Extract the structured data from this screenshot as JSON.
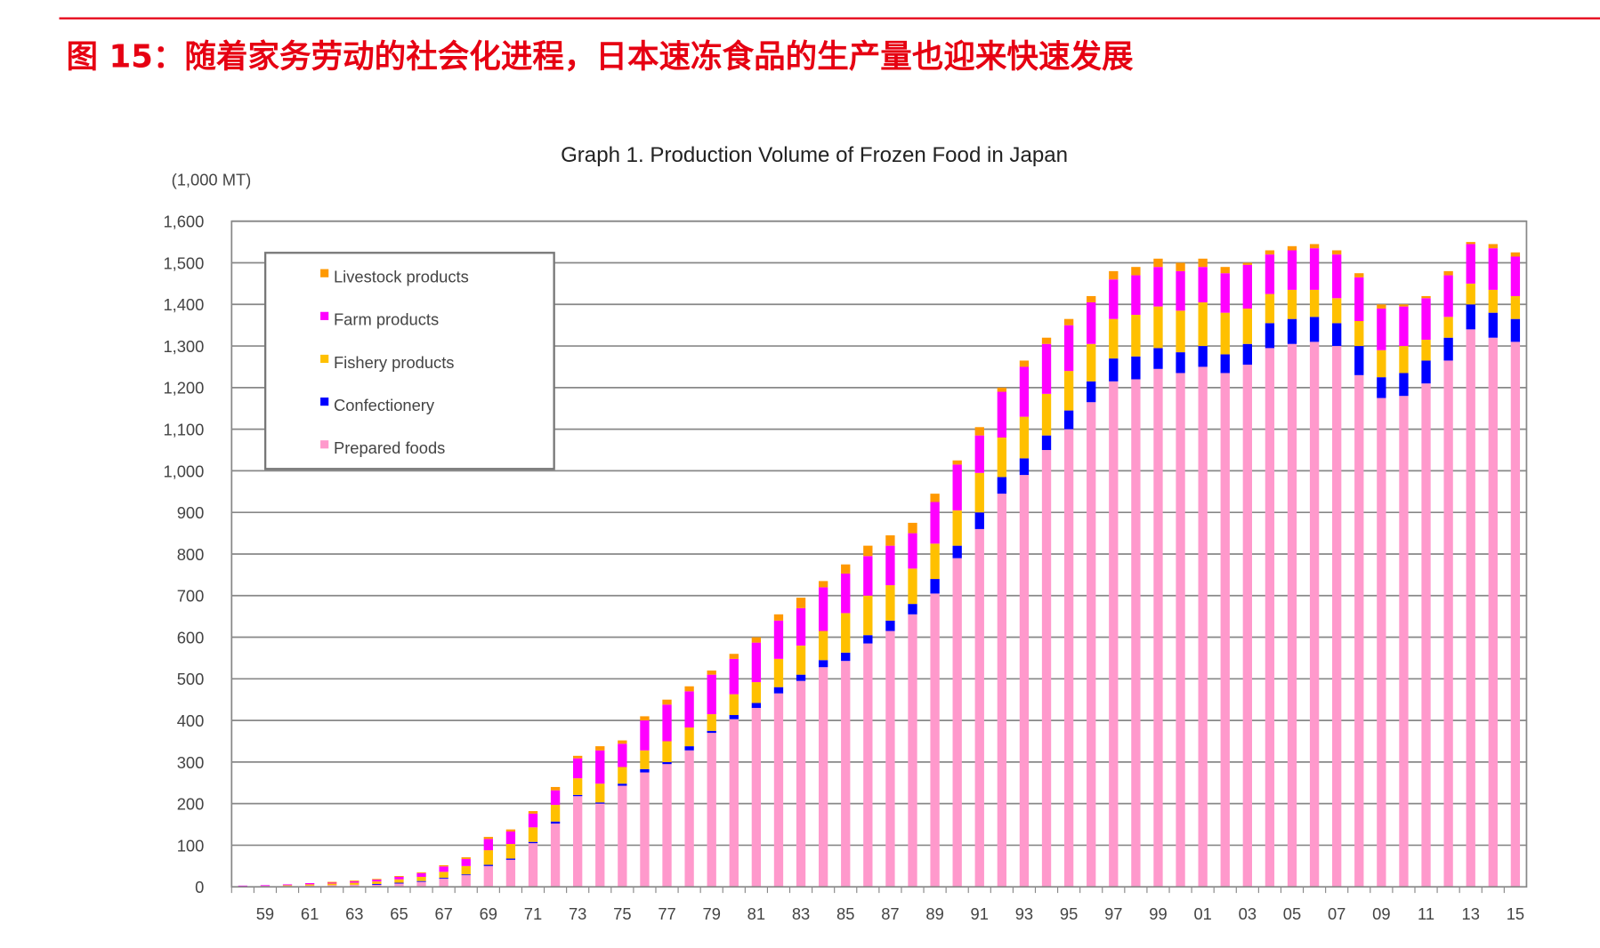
{
  "heading": "图 15：随着家务劳动的社会化进程，日本速冻食品的生产量也迎来快速发展",
  "colors": {
    "heading": "#e60012",
    "prepared": "#ff99cc",
    "confectionery": "#0000ff",
    "fishery": "#ffc000",
    "farm": "#ff00ff",
    "livestock": "#ff9900",
    "grid": "#888888"
  },
  "chart_data": {
    "type": "bar",
    "stacked": true,
    "title": "Graph 1. Production Volume of Frozen Food in Japan",
    "ylabel": "(1,000 MT)",
    "xlabel": "",
    "ylim": [
      0,
      1600
    ],
    "yticks": [
      "0",
      "100",
      "200",
      "300",
      "400",
      "500",
      "600",
      "700",
      "800",
      "900",
      "1,000",
      "1,100",
      "1,200",
      "1,300",
      "1,400",
      "1,500",
      "1,600"
    ],
    "xticklabels": [
      "59",
      "61",
      "63",
      "65",
      "67",
      "69",
      "71",
      "73",
      "75",
      "77",
      "79",
      "81",
      "83",
      "85",
      "87",
      "89",
      "91",
      "93",
      "95",
      "97",
      "99",
      "01",
      "03",
      "05",
      "07",
      "09",
      "11",
      "13",
      "15"
    ],
    "grid": true,
    "legend_placement": "top-left",
    "categories": [
      1958,
      1959,
      1960,
      1961,
      1962,
      1963,
      1964,
      1965,
      1966,
      1967,
      1968,
      1969,
      1970,
      1971,
      1972,
      1973,
      1974,
      1975,
      1976,
      1977,
      1978,
      1979,
      1980,
      1981,
      1982,
      1983,
      1984,
      1985,
      1986,
      1987,
      1988,
      1989,
      1990,
      1991,
      1992,
      1993,
      1994,
      1995,
      1996,
      1997,
      1998,
      1999,
      2000,
      2001,
      2002,
      2003,
      2004,
      2005,
      2006,
      2007,
      2008,
      2009,
      2010,
      2011,
      2012,
      2013,
      2014,
      2015
    ],
    "series": [
      {
        "name": "Prepared foods",
        "values": [
          1,
          1,
          2,
          3,
          4,
          5,
          6,
          8,
          12,
          20,
          28,
          50,
          65,
          105,
          152,
          218,
          200,
          243,
          275,
          295,
          328,
          370,
          403,
          430,
          465,
          495,
          528,
          543,
          585,
          615,
          655,
          705,
          790,
          860,
          945,
          990,
          1050,
          1100,
          1165,
          1215,
          1220,
          1245,
          1235,
          1250,
          1235,
          1255,
          1295,
          1305,
          1310,
          1300,
          1230,
          1175,
          1180,
          1210,
          1265,
          1340,
          1320,
          1310
        ]
      },
      {
        "name": "Confectionery",
        "values": [
          0,
          0,
          0,
          0,
          0,
          0,
          1,
          2,
          2,
          2,
          2,
          3,
          3,
          3,
          5,
          3,
          3,
          5,
          8,
          5,
          10,
          5,
          10,
          12,
          15,
          15,
          17,
          20,
          20,
          25,
          25,
          35,
          30,
          40,
          40,
          40,
          35,
          45,
          50,
          55,
          55,
          50,
          50,
          50,
          45,
          50,
          60,
          60,
          60,
          55,
          70,
          50,
          55,
          55,
          55,
          60,
          60,
          55
        ]
      },
      {
        "name": "Fishery products",
        "values": [
          1,
          1,
          2,
          3,
          4,
          5,
          6,
          8,
          10,
          14,
          20,
          35,
          35,
          35,
          40,
          40,
          45,
          40,
          45,
          50,
          45,
          40,
          50,
          50,
          68,
          70,
          70,
          95,
          95,
          85,
          85,
          85,
          85,
          95,
          95,
          100,
          100,
          95,
          90,
          95,
          100,
          100,
          100,
          105,
          100,
          85,
          70,
          70,
          65,
          60,
          60,
          65,
          65,
          50,
          50,
          50,
          55,
          55
        ]
      },
      {
        "name": "Farm products",
        "values": [
          1,
          2,
          2,
          3,
          3,
          4,
          5,
          7,
          9,
          13,
          17,
          27,
          30,
          33,
          35,
          48,
          80,
          56,
          72,
          88,
          87,
          95,
          85,
          95,
          92,
          90,
          105,
          95,
          95,
          95,
          85,
          100,
          110,
          90,
          110,
          120,
          120,
          110,
          100,
          95,
          95,
          95,
          95,
          85,
          95,
          105,
          95,
          95,
          100,
          105,
          105,
          100,
          95,
          100,
          100,
          95,
          100,
          95
        ]
      },
      {
        "name": "Livestock products",
        "values": [
          0,
          0,
          0,
          0,
          1,
          1,
          1,
          1,
          2,
          3,
          4,
          5,
          5,
          6,
          8,
          6,
          10,
          8,
          10,
          12,
          12,
          10,
          12,
          13,
          15,
          25,
          15,
          22,
          25,
          25,
          25,
          20,
          10,
          20,
          10,
          15,
          15,
          15,
          15,
          20,
          20,
          20,
          20,
          20,
          15,
          5,
          10,
          10,
          10,
          10,
          10,
          10,
          5,
          5,
          10,
          5,
          10,
          10
        ]
      }
    ]
  }
}
